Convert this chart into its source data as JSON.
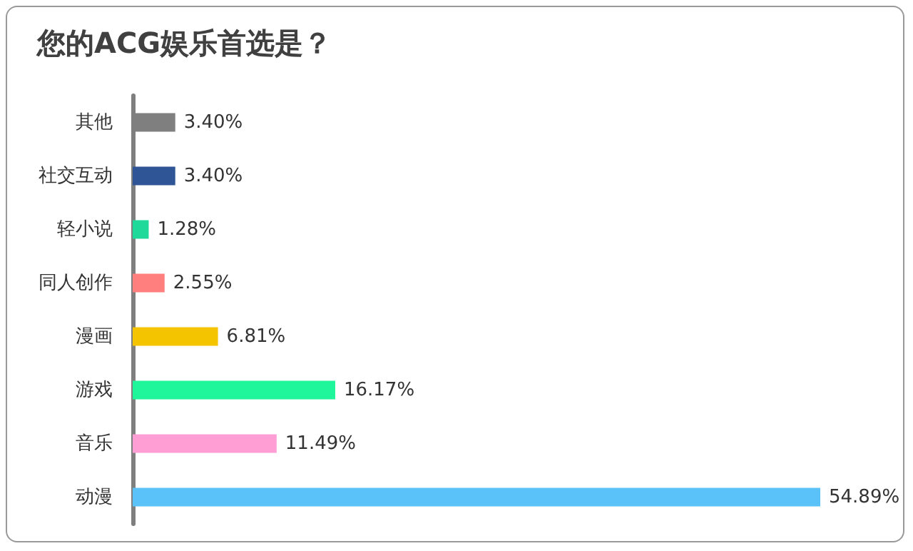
{
  "chart_data": {
    "type": "bar",
    "orientation": "horizontal",
    "title": "您的ACG娱乐首选是？",
    "categories": [
      "其他",
      "社交互动",
      "轻小说",
      "同人创作",
      "漫画",
      "游戏",
      "音乐",
      "动漫"
    ],
    "values": [
      3.4,
      3.4,
      1.28,
      2.55,
      6.81,
      16.17,
      11.49,
      54.89
    ],
    "value_labels": [
      "3.40%",
      "3.40%",
      "1.28%",
      "2.55%",
      "6.81%",
      "16.17%",
      "11.49%",
      "54.89%"
    ],
    "colors": [
      "#7f7f7f",
      "#2f5597",
      "#1fd99b",
      "#ff7f7f",
      "#f5c400",
      "#1ff59a",
      "#ff9ed4",
      "#5bc1f9"
    ]
  }
}
